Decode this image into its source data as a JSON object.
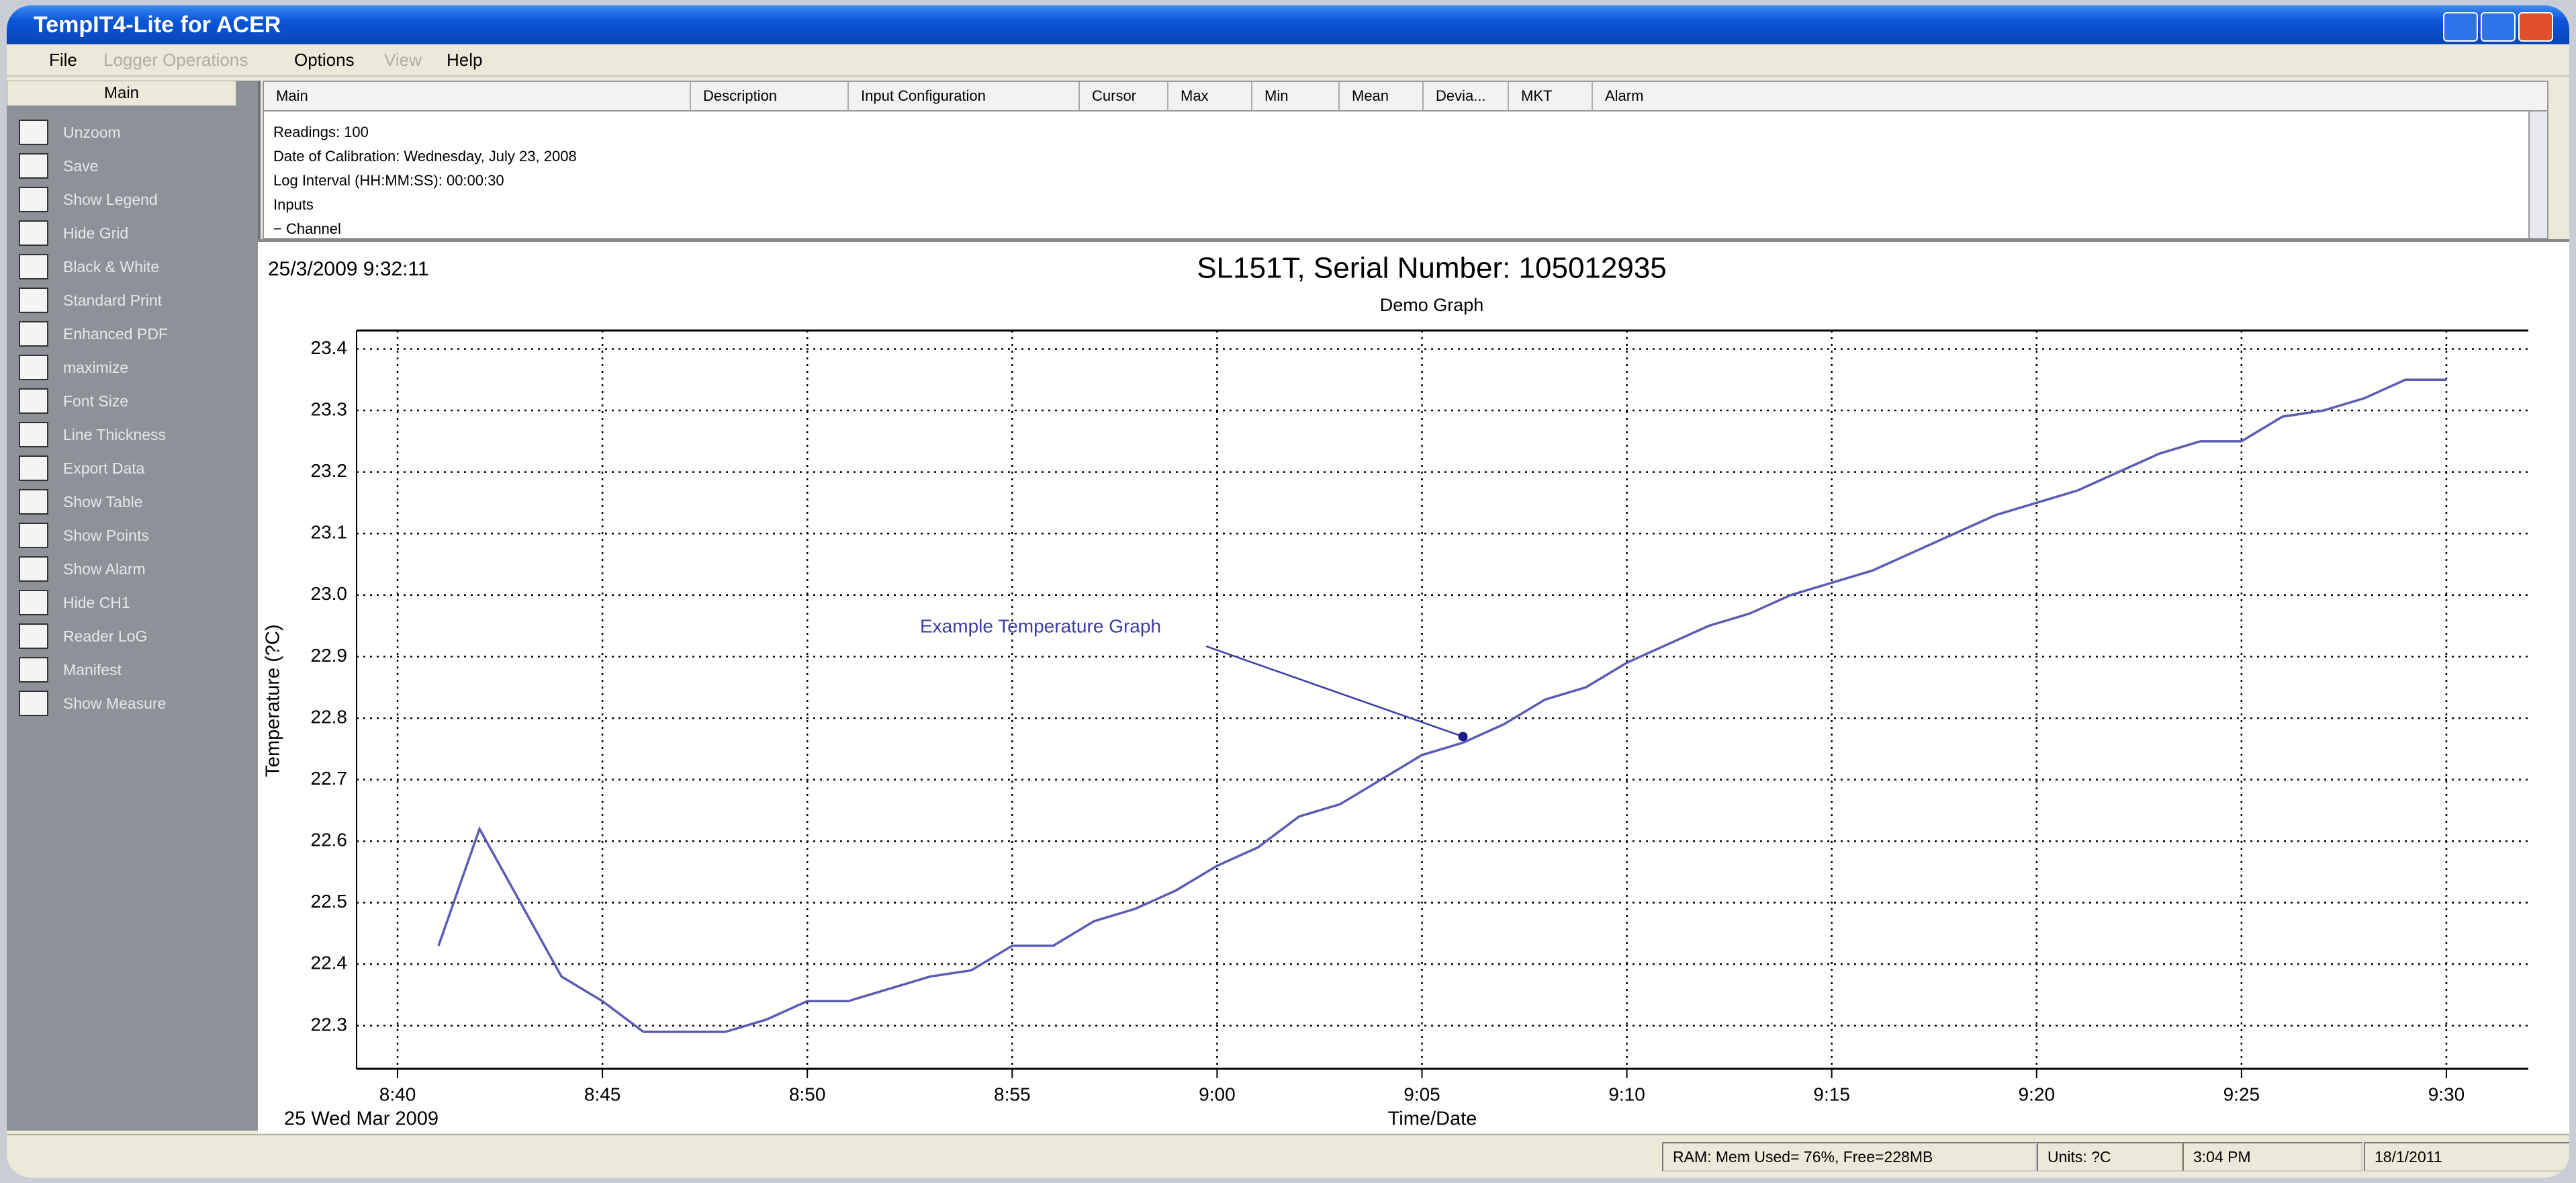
{
  "window": {
    "title": "TempIT4-Lite for ACER"
  },
  "menu": [
    "File",
    "Logger Operations",
    "Options",
    "View",
    "Help"
  ],
  "sidebar": {
    "header": "Main",
    "items": [
      "Unzoom",
      "Save",
      "Show Legend",
      "Hide Grid",
      "Black & White",
      "Standard Print",
      "Enhanced PDF",
      "maximize",
      "Font Size",
      "Line Thickness",
      "Export Data",
      "Show Table",
      "Show Points",
      "Show Alarm",
      "Hide CH1",
      "Reader LoG",
      "Manifest",
      "Show Measure"
    ]
  },
  "columns": [
    "Main",
    "Description",
    "Input Configuration",
    "Cursor",
    "Max",
    "Min",
    "Mean",
    "Devia...",
    "MKT",
    "Alarm"
  ],
  "info": [
    "Readings: 100",
    "Date of Calibration: Wednesday, July 23, 2008",
    "Log Interval (HH:MM:SS): 00:00:30",
    "Inputs",
    "−  Channel"
  ],
  "chart_data": {
    "type": "line",
    "timestamp": "25/3/2009 9:32:11",
    "title": "SL151T,  Serial Number: 105012935",
    "subtitle": "Demo Graph",
    "y_label": "Temperature (?C)",
    "x_label": "Time/Date",
    "date_label": "25 Wed Mar 2009",
    "annotation": {
      "text": "Example Temperature Graph",
      "x": "9:06",
      "y": 22.77
    },
    "x": [
      "8:41",
      "8:42",
      "8:43",
      "8:44",
      "8:45",
      "8:46",
      "8:47",
      "8:48",
      "8:49",
      "8:50",
      "8:51",
      "8:52",
      "8:53",
      "8:54",
      "8:55",
      "8:56",
      "8:57",
      "8:58",
      "8:59",
      "9:00",
      "9:01",
      "9:02",
      "9:03",
      "9:04",
      "9:05",
      "9:06",
      "9:07",
      "9:08",
      "9:09",
      "9:10",
      "9:11",
      "9:12",
      "9:13",
      "9:14",
      "9:15",
      "9:16",
      "9:17",
      "9:18",
      "9:19",
      "9:20",
      "9:21",
      "9:22",
      "9:23",
      "9:24",
      "9:25",
      "9:26",
      "9:27",
      "9:28",
      "9:29",
      "9:30"
    ],
    "series": [
      {
        "name": "CH1",
        "color": "#5b5bb4",
        "values": [
          22.43,
          22.62,
          22.5,
          22.38,
          22.34,
          22.29,
          22.29,
          22.29,
          22.31,
          22.34,
          22.34,
          22.36,
          22.38,
          22.39,
          22.43,
          22.43,
          22.47,
          22.49,
          22.52,
          22.56,
          22.59,
          22.64,
          22.66,
          22.7,
          22.74,
          22.76,
          22.79,
          22.83,
          22.85,
          22.89,
          22.92,
          22.95,
          22.97,
          23.0,
          23.02,
          23.04,
          23.07,
          23.1,
          23.13,
          23.15,
          23.17,
          23.2,
          23.23,
          23.25,
          23.25,
          23.29,
          23.3,
          23.32,
          23.35,
          23.35
        ]
      }
    ],
    "xlim": [
      "8:39",
      "9:32"
    ],
    "xticks": [
      "8:40",
      "8:45",
      "8:50",
      "8:55",
      "9:00",
      "9:05",
      "9:10",
      "9:15",
      "9:20",
      "9:25",
      "9:30"
    ],
    "ylim": [
      22.23,
      23.43
    ],
    "yticks": [
      22.3,
      22.4,
      22.5,
      22.6,
      22.7,
      22.8,
      22.9,
      {
        "value": 23,
        "label": "23.0"
      },
      23.1,
      23.2,
      23.3,
      23.4
    ],
    "grid": true
  },
  "status": [
    "RAM: Mem Used= 76%, Free=228MB",
    "Units: ?C",
    "3:04 PM",
    "18/1/2011"
  ]
}
